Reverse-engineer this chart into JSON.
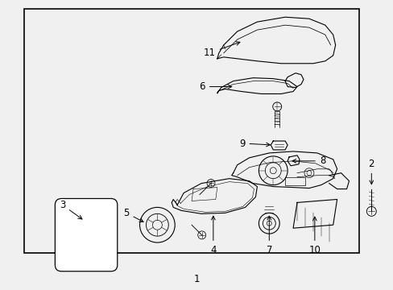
{
  "background_color": "#f0f0f0",
  "border_color": "#000000",
  "line_color": "#000000",
  "text_color": "#000000",
  "label_fontsize": 8.5,
  "border_linewidth": 1.2,
  "fig_width": 4.89,
  "fig_height": 3.6,
  "dpi": 100
}
